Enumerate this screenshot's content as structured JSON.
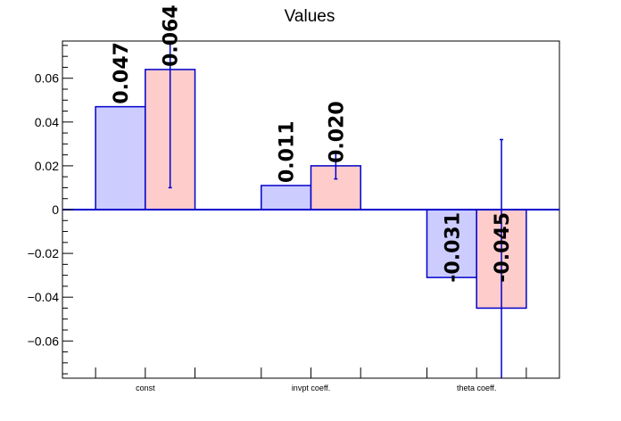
{
  "chart_data": {
    "type": "bar",
    "title": "Values",
    "xlabel": "",
    "ylabel": "",
    "categories": [
      "const",
      "invpt coeff.",
      "theta coeff."
    ],
    "ylim": [
      -0.077,
      0.077
    ],
    "yticks": [
      -0.06,
      -0.04,
      -0.02,
      0,
      0.02,
      0.04,
      0.06
    ],
    "ytick_labels": [
      "−0.06",
      "−0.04",
      "−0.02",
      "0",
      "0.02",
      "0.04",
      "0.06"
    ],
    "series": [
      {
        "values": [
          0.047,
          0.011,
          -0.031
        ],
        "labels": [
          "0.047",
          "0.011",
          "-0.031"
        ],
        "errors": [
          0,
          0,
          0
        ],
        "fill": "#ccccff",
        "line": "#0000cc"
      },
      {
        "values": [
          0.064,
          0.02,
          -0.045
        ],
        "labels": [
          "0.064",
          "0.020",
          "-0.045"
        ],
        "errors": [
          0.054,
          0.006,
          0.077
        ],
        "fill": "#ffcccc",
        "line": "#0000cc"
      }
    ],
    "grid": false,
    "legend": "none",
    "axis_color": "#000000",
    "baseline_color": "#0000cc"
  }
}
